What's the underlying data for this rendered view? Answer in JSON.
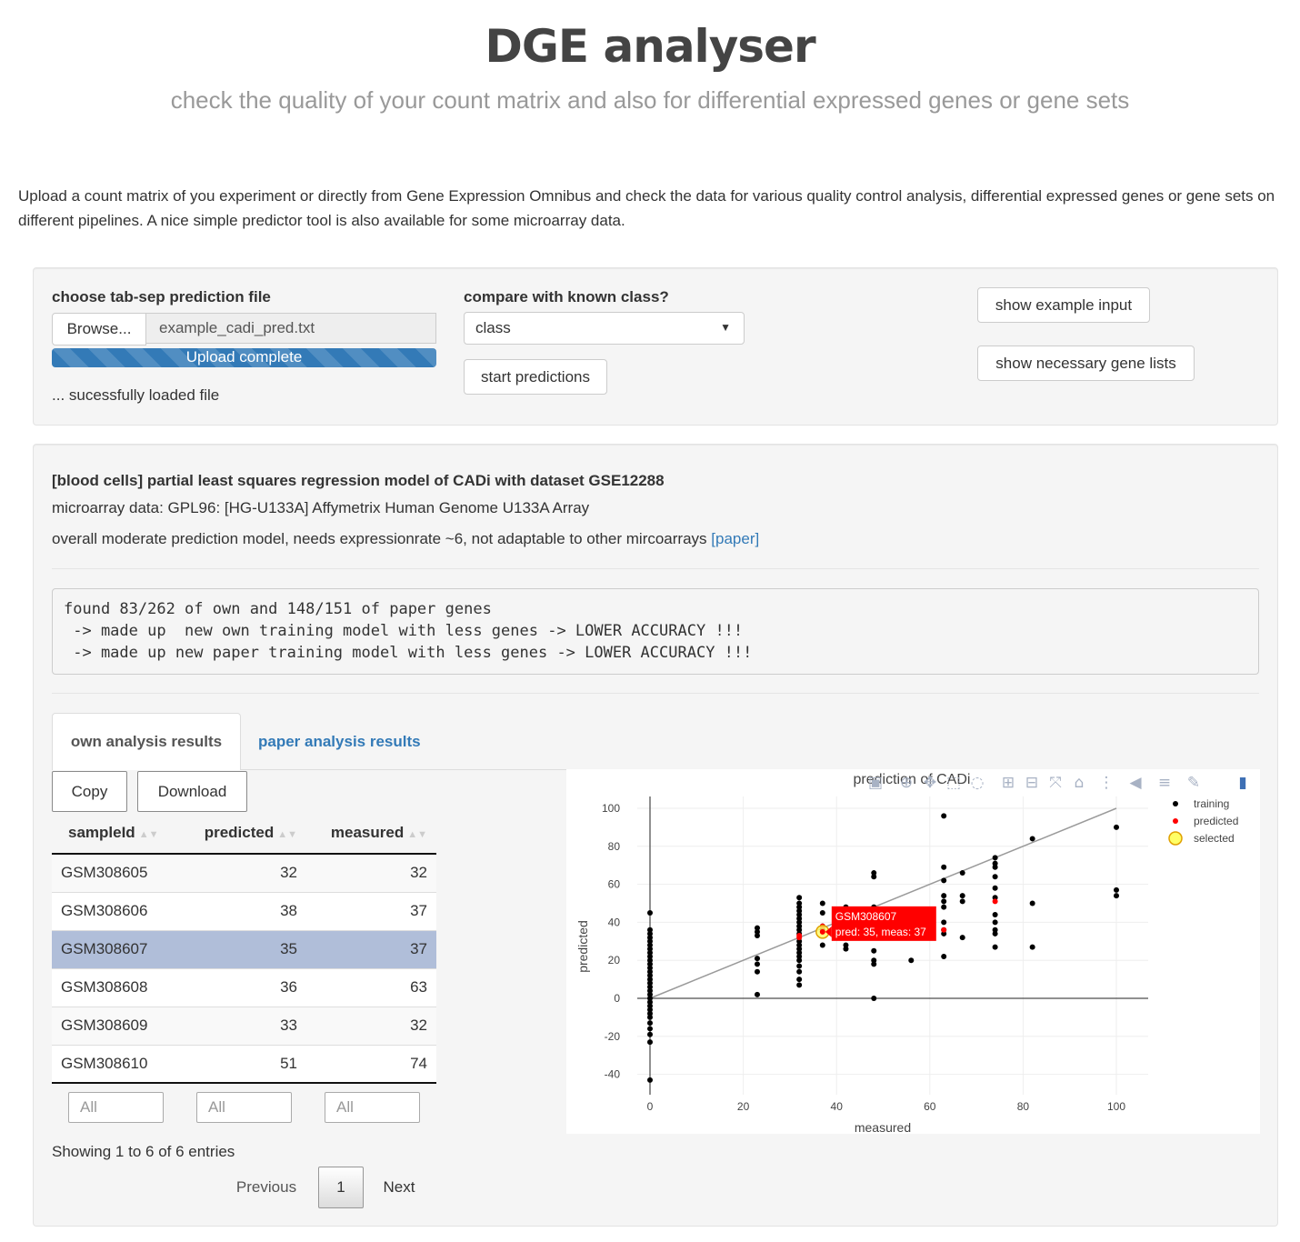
{
  "header": {
    "title": "DGE analyser",
    "subtitle": "check the quality of your count matrix and also for differential expressed genes or gene sets"
  },
  "intro": "Upload a count matrix of you experiment or directly from Gene Expression Omnibus and check the data for various quality control analysis, differential expressed genes or gene sets on different pipelines. A nice simple predictor tool is also available for some microarray data.",
  "upload": {
    "label": "choose tab-sep prediction file",
    "browse_label": "Browse...",
    "filename": "example_cadi_pred.txt",
    "progress_label": "Upload complete",
    "progress": 1.0,
    "status": "... sucessfully loaded file"
  },
  "compare": {
    "label": "compare with known class?",
    "selected": "class",
    "start_label": "start predictions"
  },
  "side_buttons": {
    "example": "show example input",
    "gene_lists": "show necessary gene lists"
  },
  "model": {
    "title": "[blood cells] partial least squares regression model of CADi with dataset GSE12288",
    "platform": "microarray data: GPL96: [HG-U133A] Affymetrix Human Genome U133A Array",
    "description": "overall moderate prediction model, needs expressionrate ~6, not adaptable to other mircoarrays",
    "paper_link": "[paper]"
  },
  "log": "found 83/262 of own and 148/151 of paper genes\n -> made up  new own training model with less genes -> LOWER ACCURACY !!!\n -> made up new paper training model with less genes -> LOWER ACCURACY !!!",
  "tabs": [
    {
      "label": "own analysis results",
      "active": true
    },
    {
      "label": "paper analysis results",
      "active": false
    }
  ],
  "table": {
    "buttons": {
      "copy": "Copy",
      "download": "Download"
    },
    "columns": [
      "sampleId",
      "predicted",
      "measured"
    ],
    "rows": [
      {
        "sampleId": "GSM308605",
        "predicted": "32",
        "measured": "32"
      },
      {
        "sampleId": "GSM308606",
        "predicted": "38",
        "measured": "37"
      },
      {
        "sampleId": "GSM308607",
        "predicted": "35",
        "measured": "37",
        "selected": true
      },
      {
        "sampleId": "GSM308608",
        "predicted": "36",
        "measured": "63"
      },
      {
        "sampleId": "GSM308609",
        "predicted": "33",
        "measured": "32"
      },
      {
        "sampleId": "GSM308610",
        "predicted": "51",
        "measured": "74"
      }
    ],
    "filters": [
      "All",
      "All",
      "All"
    ],
    "info": "Showing 1 to 6 of 6 entries",
    "pager": {
      "previous": "Previous",
      "current": "1",
      "next": "Next"
    }
  },
  "chart_data": {
    "type": "scatter",
    "title": "prediction of CADi",
    "xlabel": "measured",
    "ylabel": "predicted",
    "xlim": [
      0,
      100
    ],
    "ylim": [
      -45,
      105
    ],
    "xticks": [
      0,
      20,
      40,
      60,
      80,
      100
    ],
    "yticks": [
      -40,
      -20,
      0,
      20,
      40,
      60,
      80,
      100
    ],
    "grid": true,
    "legend_position": "top-right",
    "colors": {
      "training": "#000000",
      "predicted": "#ff0000",
      "selected": "#ffff66",
      "diagonal": "#9a9a9a"
    },
    "diagonal": [
      [
        0,
        0
      ],
      [
        100,
        100
      ]
    ],
    "series": [
      {
        "name": "training",
        "points": [
          [
            0,
            45
          ],
          [
            0,
            36
          ],
          [
            0,
            34
          ],
          [
            0,
            32
          ],
          [
            0,
            30
          ],
          [
            0,
            28
          ],
          [
            0,
            26
          ],
          [
            0,
            24
          ],
          [
            0,
            22
          ],
          [
            0,
            20
          ],
          [
            0,
            18
          ],
          [
            0,
            16
          ],
          [
            0,
            14
          ],
          [
            0,
            12
          ],
          [
            0,
            10
          ],
          [
            0,
            8
          ],
          [
            0,
            6
          ],
          [
            0,
            4
          ],
          [
            0,
            2
          ],
          [
            0,
            0
          ],
          [
            0,
            -2
          ],
          [
            0,
            -4
          ],
          [
            0,
            -6
          ],
          [
            0,
            -8
          ],
          [
            0,
            -10
          ],
          [
            0,
            -13
          ],
          [
            0,
            -16
          ],
          [
            0,
            -19
          ],
          [
            0,
            -23
          ],
          [
            0,
            -43
          ],
          [
            23,
            37
          ],
          [
            23,
            35
          ],
          [
            23,
            33
          ],
          [
            23,
            21
          ],
          [
            23,
            18
          ],
          [
            23,
            14
          ],
          [
            23,
            2
          ],
          [
            32,
            53
          ],
          [
            32,
            50
          ],
          [
            32,
            48
          ],
          [
            32,
            46
          ],
          [
            32,
            44
          ],
          [
            32,
            42
          ],
          [
            32,
            40
          ],
          [
            32,
            38
          ],
          [
            32,
            36
          ],
          [
            32,
            34
          ],
          [
            32,
            30
          ],
          [
            32,
            28
          ],
          [
            32,
            26
          ],
          [
            32,
            24
          ],
          [
            32,
            22
          ],
          [
            32,
            20
          ],
          [
            32,
            17
          ],
          [
            32,
            14
          ],
          [
            32,
            10
          ],
          [
            32,
            7
          ],
          [
            37,
            50
          ],
          [
            37,
            45
          ],
          [
            37,
            38
          ],
          [
            37,
            36
          ],
          [
            37,
            28
          ],
          [
            42,
            48
          ],
          [
            42,
            44
          ],
          [
            42,
            32
          ],
          [
            42,
            28
          ],
          [
            42,
            26
          ],
          [
            48,
            66
          ],
          [
            48,
            64
          ],
          [
            48,
            48
          ],
          [
            48,
            40
          ],
          [
            48,
            32
          ],
          [
            48,
            25
          ],
          [
            48,
            20
          ],
          [
            48,
            18
          ],
          [
            48,
            0
          ],
          [
            56,
            20
          ],
          [
            63,
            96
          ],
          [
            63,
            69
          ],
          [
            63,
            62
          ],
          [
            63,
            54
          ],
          [
            63,
            51
          ],
          [
            63,
            48
          ],
          [
            63,
            40
          ],
          [
            63,
            36
          ],
          [
            63,
            34
          ],
          [
            63,
            22
          ],
          [
            67,
            66
          ],
          [
            67,
            54
          ],
          [
            67,
            51
          ],
          [
            67,
            32
          ],
          [
            74,
            74
          ],
          [
            74,
            71
          ],
          [
            74,
            69
          ],
          [
            74,
            64
          ],
          [
            74,
            58
          ],
          [
            74,
            53
          ],
          [
            74,
            44
          ],
          [
            74,
            40
          ],
          [
            74,
            36
          ],
          [
            74,
            34
          ],
          [
            74,
            27
          ],
          [
            82,
            84
          ],
          [
            82,
            50
          ],
          [
            82,
            27
          ],
          [
            100,
            90
          ],
          [
            100,
            57
          ],
          [
            100,
            54
          ]
        ]
      },
      {
        "name": "predicted",
        "points": [
          [
            32,
            32
          ],
          [
            37,
            38
          ],
          [
            37,
            35
          ],
          [
            63,
            36
          ],
          [
            32,
            33
          ],
          [
            74,
            51
          ]
        ]
      },
      {
        "name": "selected",
        "points": [
          [
            37,
            35
          ]
        ]
      }
    ],
    "tooltip": {
      "title": "GSM308607",
      "text": "pred: 35, meas: 37"
    }
  }
}
